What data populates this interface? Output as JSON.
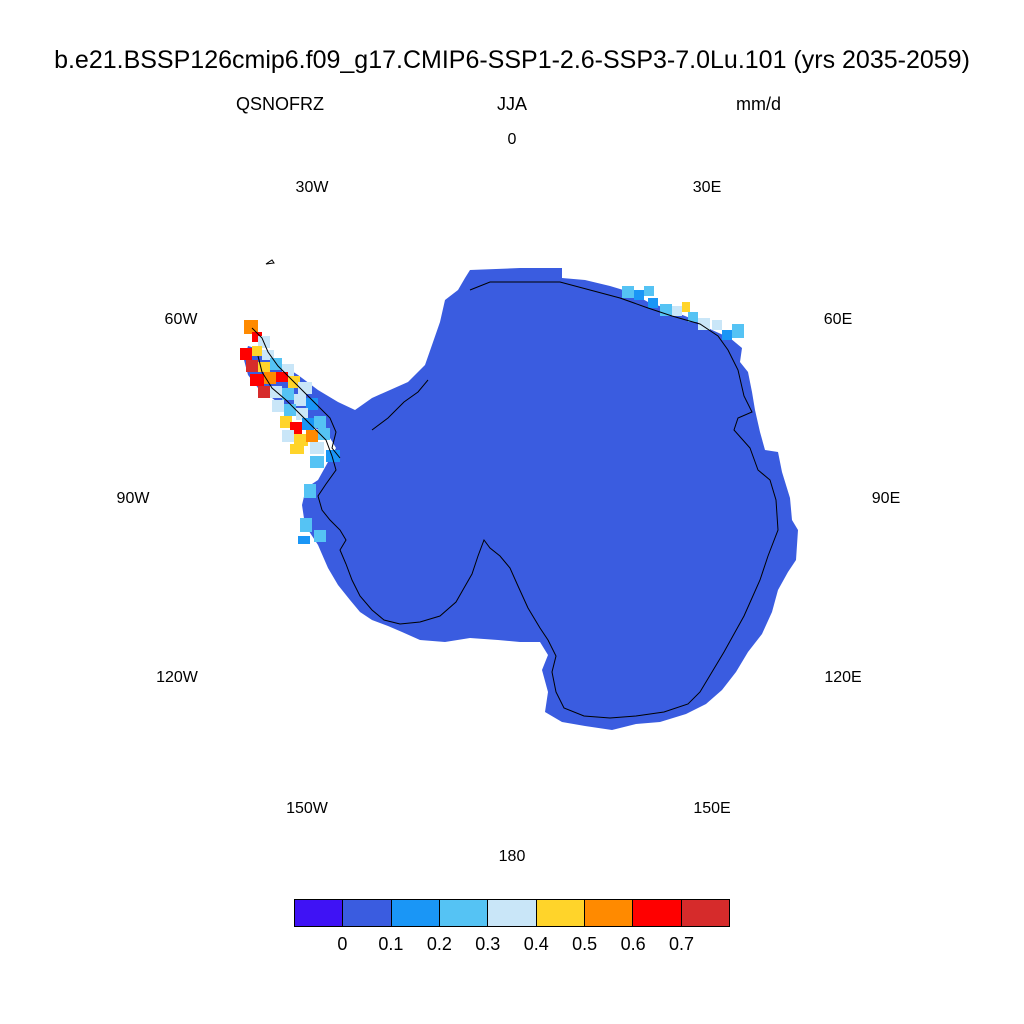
{
  "title": "b.e21.BSSP126cmip6.f09_g17.CMIP6-SSP1-2.6-SSP3-7.0Lu.101 (yrs 2035-2059)",
  "subtitle_left": "QSNOFRZ",
  "subtitle_center": "JJA",
  "subtitle_right": "mm/d",
  "longitude_labels": [
    "0",
    "30E",
    "60E",
    "90E",
    "120E",
    "150E",
    "180",
    "150W",
    "120W",
    "90W",
    "60W",
    "30W"
  ],
  "colorbar": {
    "colors": [
      "#3f12f5",
      "#3a5ce0",
      "#1a96f6",
      "#55c3f4",
      "#c9e6f8",
      "#ffd42a",
      "#ff8a00",
      "#ff0000",
      "#d62b2b"
    ],
    "labels": [
      "0",
      "0.1",
      "0.2",
      "0.3",
      "0.4",
      "0.5",
      "0.6",
      "0.7"
    ]
  },
  "colors": {
    "land_fill": "#3a5ce0",
    "coastline": "#000000"
  }
}
